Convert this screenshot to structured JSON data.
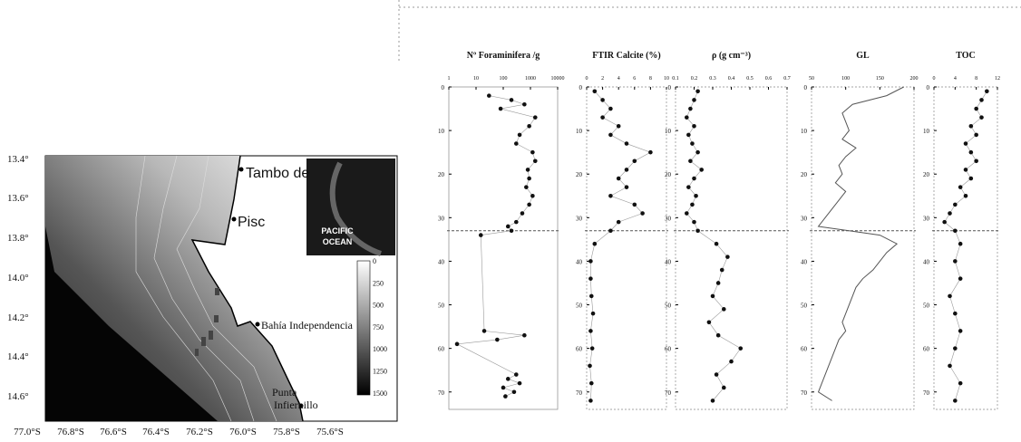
{
  "map": {
    "lat_labels": [
      "13.4°",
      "13.6°",
      "13.8°",
      "14.0°",
      "14.2°",
      "14.4°",
      "14.6°"
    ],
    "lon_labels": [
      "77.0°S",
      "76.8°S",
      "76.6°S",
      "76.4°S",
      "76.2°S",
      "76.0°S",
      "75.8°S",
      "75.6°S"
    ],
    "places": [
      "Tambo de",
      "Pisc",
      "Bahía Independencia",
      "Punta",
      "Infiernillo"
    ],
    "inset_label": [
      "PACIFIC",
      "OCEAN"
    ],
    "colorbar_labels": [
      "0",
      "250",
      "500",
      "750",
      "1000",
      "1250",
      "1500"
    ]
  },
  "profiles": {
    "depth_lim": [
      0,
      74
    ],
    "depth_ticks": [
      0,
      10,
      20,
      30,
      40,
      50,
      60,
      70
    ],
    "boundary_depth": 33,
    "panels": [
      {
        "title": "Nº Foraminifera /g",
        "log": true,
        "xlim": [
          1,
          10000
        ],
        "xticks": [
          1,
          10,
          100,
          1000,
          10000
        ],
        "depth": [
          2,
          3,
          4,
          5,
          7,
          9,
          11,
          13,
          15,
          17,
          19,
          21,
          23,
          25,
          27,
          29,
          31,
          32,
          33,
          34,
          56,
          57,
          58,
          59,
          66,
          67,
          68,
          69,
          70,
          71
        ],
        "values": [
          30,
          200,
          600,
          80,
          1500,
          900,
          400,
          300,
          1200,
          1500,
          800,
          900,
          700,
          1200,
          900,
          500,
          300,
          150,
          200,
          15,
          20,
          600,
          60,
          2,
          300,
          150,
          400,
          100,
          250,
          120
        ],
        "style": "points"
      },
      {
        "title": "FTIR Calcite (%)",
        "xlim": [
          0,
          10
        ],
        "xticks": [
          0,
          2,
          4,
          6,
          8,
          10
        ],
        "depth": [
          1,
          3,
          5,
          7,
          9,
          11,
          13,
          15,
          17,
          19,
          21,
          23,
          25,
          27,
          29,
          31,
          33,
          36,
          40,
          44,
          48,
          52,
          56,
          60,
          64,
          68,
          72
        ],
        "values": [
          1,
          2,
          3,
          2,
          4,
          3,
          5,
          8,
          6,
          5,
          4,
          5,
          3,
          6,
          7,
          4,
          3,
          1,
          0.5,
          0.5,
          0.6,
          0.8,
          0.5,
          0.7,
          0.4,
          0.6,
          0.5
        ],
        "style": "points"
      },
      {
        "title": "ρ (g cm⁻³)",
        "xlim": [
          0.1,
          0.7
        ],
        "xticks": [
          0.1,
          0.2,
          0.3,
          0.4,
          0.5,
          0.6,
          0.7
        ],
        "depth": [
          1,
          3,
          5,
          7,
          9,
          11,
          13,
          15,
          17,
          19,
          21,
          23,
          25,
          27,
          29,
          31,
          33,
          36,
          39,
          42,
          45,
          48,
          51,
          54,
          57,
          60,
          63,
          66,
          69,
          72
        ],
        "values": [
          0.22,
          0.2,
          0.18,
          0.16,
          0.2,
          0.17,
          0.19,
          0.22,
          0.18,
          0.24,
          0.2,
          0.17,
          0.21,
          0.19,
          0.16,
          0.2,
          0.22,
          0.32,
          0.38,
          0.35,
          0.33,
          0.3,
          0.36,
          0.28,
          0.33,
          0.45,
          0.4,
          0.32,
          0.36,
          0.3
        ],
        "style": "points"
      },
      {
        "title": "GL",
        "xlim": [
          50,
          200
        ],
        "xticks": [
          50,
          100,
          150,
          200
        ],
        "depth": [
          0,
          2,
          4,
          6,
          8,
          10,
          12,
          14,
          16,
          18,
          20,
          22,
          24,
          26,
          28,
          30,
          32,
          34,
          36,
          38,
          40,
          42,
          44,
          46,
          48,
          50,
          52,
          54,
          56,
          58,
          60,
          62,
          64,
          66,
          68,
          70,
          72
        ],
        "values": [
          185,
          160,
          110,
          95,
          100,
          105,
          95,
          115,
          100,
          90,
          95,
          85,
          100,
          90,
          80,
          70,
          60,
          150,
          175,
          160,
          150,
          140,
          125,
          115,
          110,
          105,
          100,
          95,
          100,
          90,
          85,
          80,
          75,
          70,
          65,
          60,
          80
        ],
        "style": "line"
      },
      {
        "title": "TOC",
        "xlim": [
          0,
          12
        ],
        "xticks": [
          0,
          4,
          8,
          12
        ],
        "depth": [
          1,
          3,
          5,
          7,
          9,
          11,
          13,
          15,
          17,
          19,
          21,
          23,
          25,
          27,
          29,
          31,
          33,
          36,
          40,
          44,
          48,
          52,
          56,
          60,
          64,
          68,
          72
        ],
        "values": [
          10,
          9,
          8,
          9,
          7,
          8,
          6,
          7,
          8,
          6,
          7,
          5,
          6,
          4,
          3,
          2,
          4,
          5,
          4,
          5,
          3,
          4,
          5,
          4,
          3,
          5,
          4
        ],
        "style": "points"
      }
    ]
  }
}
